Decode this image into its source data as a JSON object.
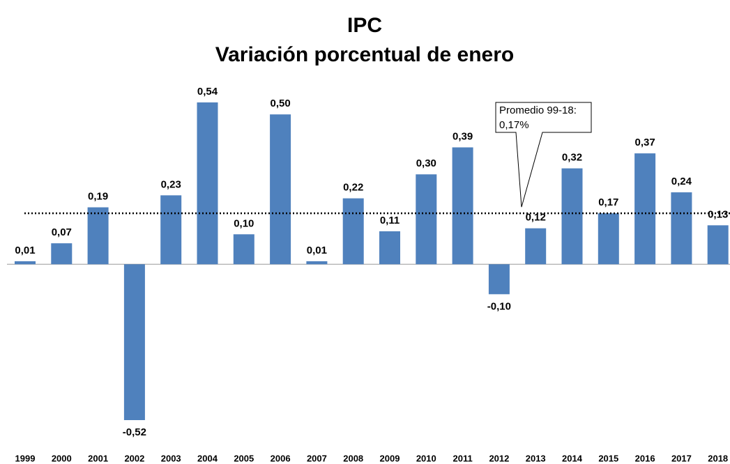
{
  "chart_data": {
    "type": "bar",
    "title": [
      "IPC",
      "Variación porcentual de enero"
    ],
    "categories": [
      "1999",
      "2000",
      "2001",
      "2002",
      "2003",
      "2004",
      "2005",
      "2006",
      "2007",
      "2008",
      "2009",
      "2010",
      "2011",
      "2012",
      "2013",
      "2014",
      "2015",
      "2016",
      "2017",
      "2018"
    ],
    "values": [
      0.01,
      0.07,
      0.19,
      -0.52,
      0.23,
      0.54,
      0.1,
      0.5,
      0.01,
      0.22,
      0.11,
      0.3,
      0.39,
      -0.1,
      0.12,
      0.32,
      0.17,
      0.37,
      0.24,
      0.13
    ],
    "value_labels": [
      "0,01",
      "0,07",
      "0,19",
      "-0,52",
      "0,23",
      "0,54",
      "0,10",
      "0,50",
      "0,01",
      "0,22",
      "0,11",
      "0,30",
      "0,39",
      "-0,10",
      "0,12",
      "0,32",
      "0,17",
      "0,37",
      "0,24",
      "0,13"
    ],
    "color": "#4f81bd",
    "average": {
      "value": 0.17,
      "label": [
        "Promedio 99-18:",
        "0,17%"
      ]
    }
  }
}
